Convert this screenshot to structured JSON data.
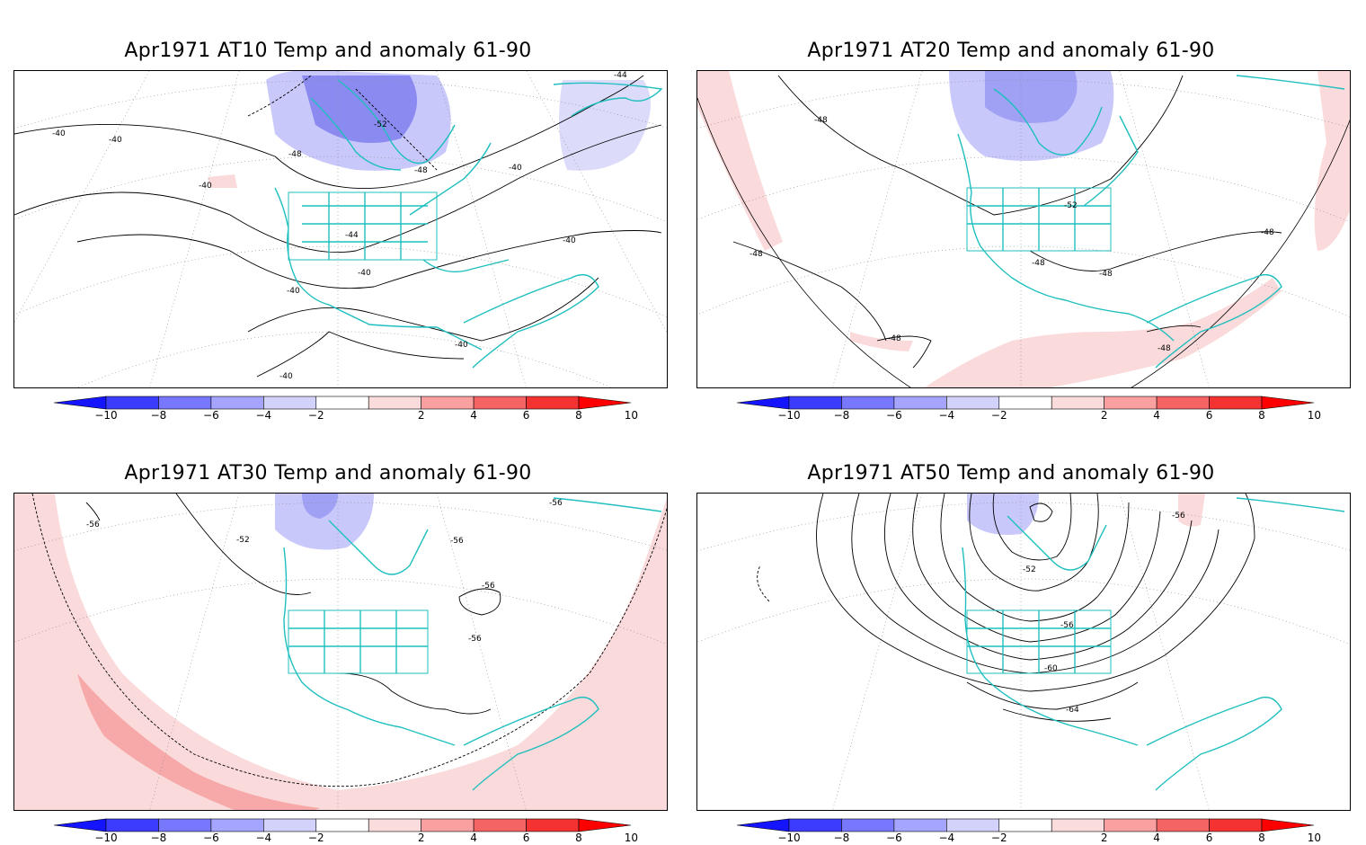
{
  "panels": [
    {
      "title": "Apr1971 AT10 Temp and anomaly 61-90",
      "contour_labels": [
        "-40",
        "-40",
        "-40",
        "-48",
        "-52",
        "-48",
        "-40",
        "-44",
        "-40",
        "-40",
        "-40",
        "-40",
        "-40",
        "-44"
      ]
    },
    {
      "title": "Apr1971 AT20 Temp and anomaly 61-90",
      "contour_labels": [
        "-48",
        "-52",
        "-48",
        "-48",
        "-48",
        "-48",
        "-48",
        "-48"
      ]
    },
    {
      "title": "Apr1971 AT30 Temp and anomaly 61-90",
      "contour_labels": [
        "-56",
        "-52",
        "-56",
        "-56",
        "-56",
        "-56"
      ]
    },
    {
      "title": "Apr1971 AT50 Temp and anomaly 61-90",
      "contour_labels": [
        "-56",
        "-52",
        "-56",
        "-60",
        "-64"
      ]
    }
  ],
  "colorbar": {
    "ticks": [
      "−10",
      "−8",
      "−6",
      "−4",
      "−2",
      "2",
      "4",
      "6",
      "8",
      "10"
    ],
    "colors": [
      "#1414ff",
      "#3c3cff",
      "#7878ff",
      "#a5a5ff",
      "#d2d2fa",
      "#ffffff",
      "#fadcdc",
      "#faa0a0",
      "#f56464",
      "#f53232",
      "#ff0000"
    ]
  },
  "colors": {
    "coast": "#1fbfbf",
    "neg_anom": "#9c9cf4",
    "pos_anom": "#fadada",
    "contour": "#000000"
  }
}
